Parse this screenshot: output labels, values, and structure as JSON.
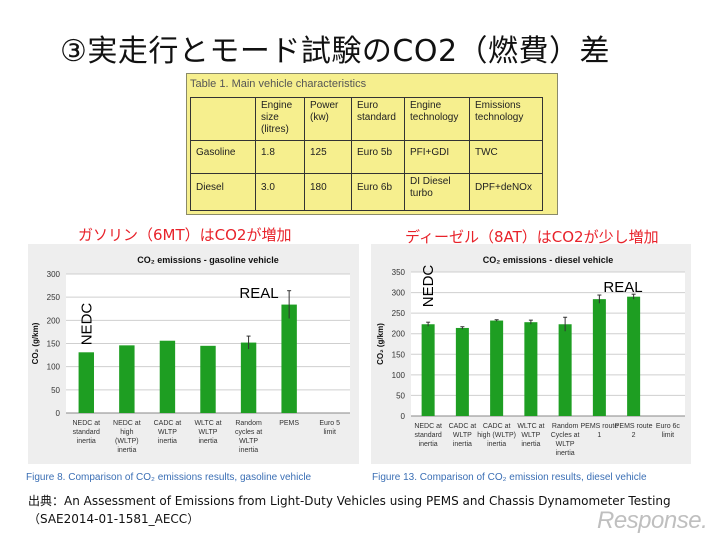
{
  "slide": {
    "title": "③実走行とモード試験のCO2（燃費）差",
    "gas_subtitle": "ガソリン（6MT）はCO2が増加",
    "diesel_subtitle": "ディーゼル（8AT）はCO2が少し増加",
    "source": "出典：An Assessment of Emissions from Light-Duty Vehicles using PEMS and Chassis Dynamometer Testing（SAE2014-01-1581_AECC）",
    "watermark": "Response."
  },
  "table": {
    "caption": "Table 1. Main vehicle characteristics",
    "headers": [
      "",
      "Engine size (litres)",
      "Power (kw)",
      "Euro standard",
      "Engine technology",
      "Emissions technology"
    ],
    "rows": [
      [
        "Gasoline",
        "1.8",
        "125",
        "Euro 5b",
        "PFI+GDI",
        "TWC"
      ],
      [
        "Diesel",
        "3.0",
        "180",
        "Euro 6b",
        "DI Diesel turbo",
        "DPF+deNOx"
      ]
    ]
  },
  "chart_data": [
    {
      "type": "bar",
      "title": "CO₂ emissions - gasoline vehicle",
      "ylabel": "CO₂ (g/km)",
      "ylim": [
        0,
        300
      ],
      "yticks": [
        0,
        50,
        100,
        150,
        200,
        250,
        300
      ],
      "grid": true,
      "categories": [
        [
          "NEDC at",
          "standard",
          "inertia"
        ],
        [
          "NEDC at",
          "high",
          "(WLTP)",
          "inertia"
        ],
        [
          "CADC at",
          "WLTP",
          "inertia"
        ],
        [
          "WLTC at",
          "WLTP",
          "inertia"
        ],
        [
          "Random",
          "cycles at",
          "WLTP",
          "inertia"
        ],
        [
          "PEMS"
        ],
        [
          "Euro 5",
          "limit"
        ]
      ],
      "values": [
        131,
        146,
        156,
        145,
        152,
        234,
        null
      ],
      "error_bars": [
        0,
        0,
        0,
        0,
        14,
        30,
        0
      ],
      "color": "#1e9e22",
      "annotations": [
        "NEDC",
        "REAL"
      ],
      "caption": "Figure 8. Comparison of CO₂ emissions results, gasoline vehicle"
    },
    {
      "type": "bar",
      "title": "CO₂ emissions - diesel vehicle",
      "ylabel": "CO₂ (g/km)",
      "ylim": [
        0,
        350
      ],
      "yticks": [
        0,
        50,
        100,
        150,
        200,
        250,
        300,
        350
      ],
      "grid": true,
      "categories": [
        [
          "NEDC at",
          "standard",
          "inertia"
        ],
        [
          "CADC at",
          "WLTP",
          "inertia"
        ],
        [
          "CADC at",
          "high (WLTP)",
          "inertia"
        ],
        [
          "WLTC at",
          "WLTP",
          "inertia"
        ],
        [
          "Random",
          "Cycles at",
          "WLTP",
          "inertia"
        ],
        [
          "PEMS route",
          "1"
        ],
        [
          "PEMS route",
          "2"
        ],
        [
          "Euro 6c",
          "limit"
        ]
      ],
      "values": [
        223,
        214,
        232,
        228,
        223,
        284,
        290,
        null
      ],
      "error_bars": [
        5,
        3,
        2,
        5,
        17,
        10,
        6,
        0
      ],
      "color": "#1e9e22",
      "annotations": [
        "NEDC",
        "REAL"
      ],
      "caption": "Figure 13. Comparison of CO₂ emission results, diesel vehicle"
    }
  ]
}
